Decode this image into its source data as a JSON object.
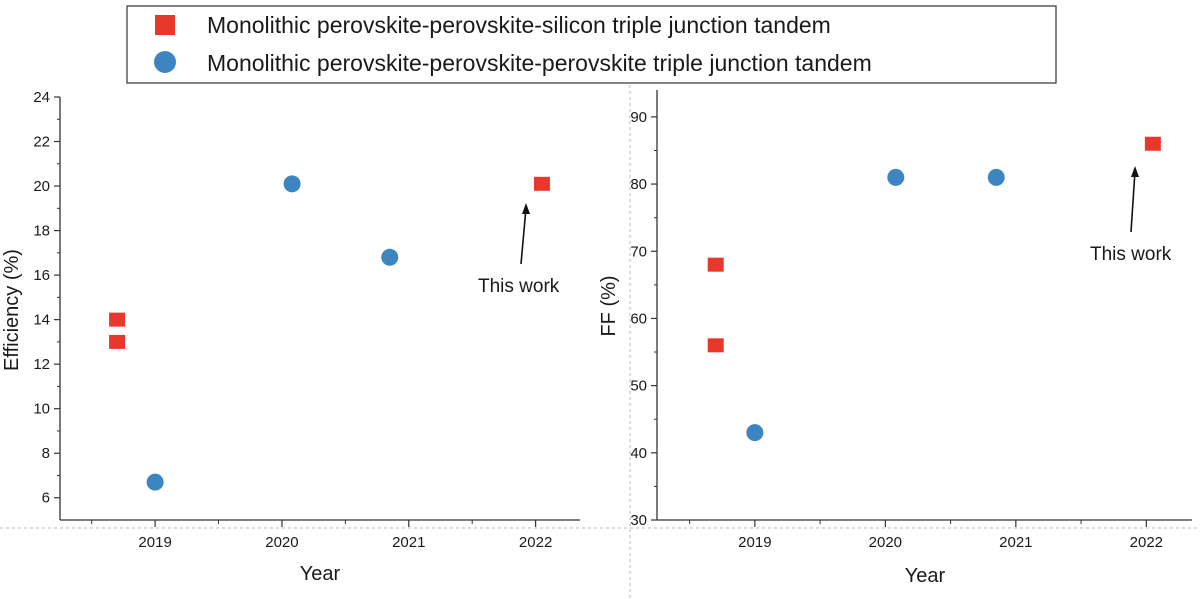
{
  "legend": {
    "entries": [
      {
        "label": "Monolithic perovskite-perovskite-silicon triple junction tandem",
        "marker": "square",
        "color": "#e8382c"
      },
      {
        "label": "Monolithic perovskite-perovskite-perovskite triple junction tandem",
        "marker": "circle",
        "color": "#3d85c0"
      }
    ]
  },
  "chart_data": [
    {
      "type": "scatter",
      "xlabel": "Year",
      "ylabel": "Efficiency (%)",
      "xlim": [
        2018.25,
        2022.35
      ],
      "ylim": [
        5,
        24
      ],
      "xticks": [
        2019,
        2020,
        2021,
        2022
      ],
      "yticks": [
        6,
        8,
        10,
        12,
        14,
        16,
        18,
        20,
        22,
        24
      ],
      "series": [
        {
          "name": "Monolithic perovskite-perovskite-silicon triple junction tandem",
          "marker": "square",
          "color": "#e8382c",
          "points": [
            {
              "x": 2018.7,
              "y": 14.0
            },
            {
              "x": 2018.7,
              "y": 13.0
            },
            {
              "x": 2022.05,
              "y": 20.1
            }
          ]
        },
        {
          "name": "Monolithic perovskite-perovskite-perovskite triple junction tandem",
          "marker": "circle",
          "color": "#3d85c0",
          "points": [
            {
              "x": 2019.0,
              "y": 6.7
            },
            {
              "x": 2020.08,
              "y": 20.1
            },
            {
              "x": 2020.85,
              "y": 16.8
            }
          ]
        }
      ],
      "annotation": {
        "text": "This work",
        "x": 2022.05,
        "y": 20.1
      }
    },
    {
      "type": "scatter",
      "xlabel": "Year",
      "ylabel": "FF (%)",
      "xlim": [
        2018.25,
        2022.35
      ],
      "ylim": [
        30,
        94
      ],
      "xticks": [
        2019,
        2020,
        2021,
        2022
      ],
      "yticks": [
        30,
        40,
        50,
        60,
        70,
        80,
        90
      ],
      "series": [
        {
          "name": "Monolithic perovskite-perovskite-silicon triple junction tandem",
          "marker": "square",
          "color": "#e8382c",
          "points": [
            {
              "x": 2018.7,
              "y": 68
            },
            {
              "x": 2018.7,
              "y": 56
            },
            {
              "x": 2022.05,
              "y": 86
            }
          ]
        },
        {
          "name": "Monolithic perovskite-perovskite-perovskite triple junction tandem",
          "marker": "circle",
          "color": "#3d85c0",
          "points": [
            {
              "x": 2019.0,
              "y": 43
            },
            {
              "x": 2020.08,
              "y": 81
            },
            {
              "x": 2020.85,
              "y": 81
            }
          ]
        }
      ],
      "annotation": {
        "text": "This work",
        "x": 2022.05,
        "y": 86
      }
    }
  ]
}
